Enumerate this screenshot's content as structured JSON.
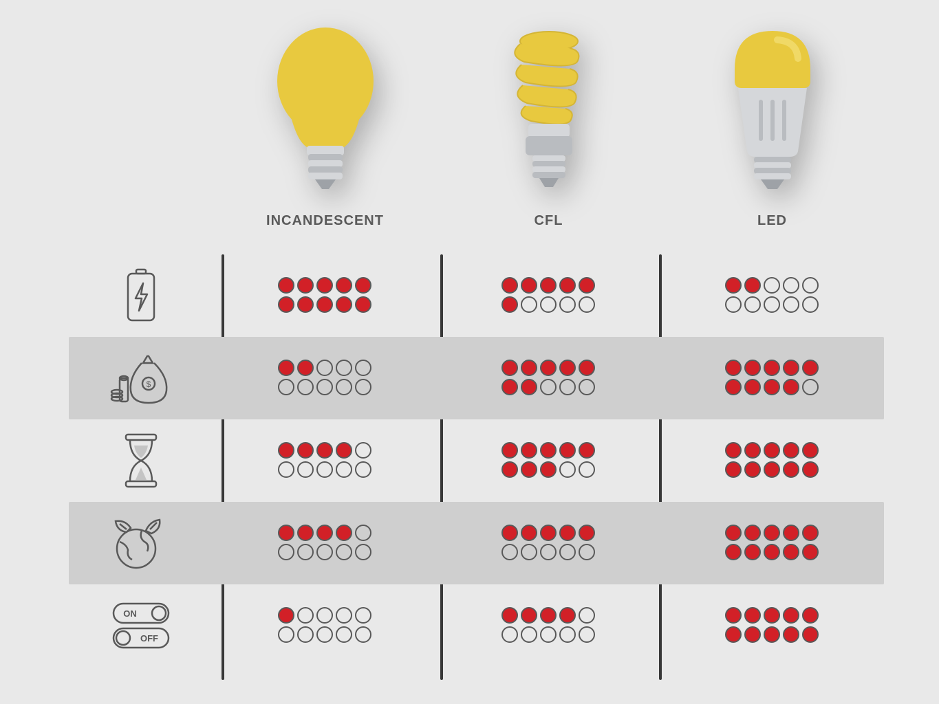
{
  "type": "infographic-comparison-table",
  "background_color": "#e9e9e9",
  "alt_row_color": "#cfcfcf",
  "divider_color": "#383838",
  "dot_filled_color": "#d22027",
  "dot_border_color": "#595959",
  "icon_stroke_color": "#595959",
  "label_color": "#5a5a5a",
  "label_fontsize": 20,
  "bulb_yellow": "#e8c93f",
  "bulb_yellow_light": "#f0d966",
  "bulb_gray": "#b9bcc0",
  "bulb_gray_light": "#d5d7da",
  "bulb_gray_dark": "#9ea2a7",
  "columns": [
    {
      "id": "incandescent",
      "label": "INCANDESCENT"
    },
    {
      "id": "cfl",
      "label": "CFL"
    },
    {
      "id": "led",
      "label": "LED"
    }
  ],
  "rows": [
    {
      "id": "energy",
      "icon": "battery-bolt-icon",
      "alt": false,
      "scores": [
        10,
        6,
        2
      ]
    },
    {
      "id": "cost",
      "icon": "money-bag-icon",
      "alt": true,
      "scores": [
        2,
        7,
        9
      ]
    },
    {
      "id": "lifetime",
      "icon": "hourglass-icon",
      "alt": false,
      "scores": [
        4,
        8,
        10
      ]
    },
    {
      "id": "eco",
      "icon": "earth-leaf-icon",
      "alt": true,
      "scores": [
        4,
        5,
        10
      ]
    },
    {
      "id": "switching",
      "icon": "on-off-toggle-icon",
      "alt": false,
      "scores": [
        1,
        4,
        10
      ]
    }
  ],
  "dots_total": 10,
  "dots_per_row": 5,
  "toggle_on_text": "ON",
  "toggle_off_text": "OFF"
}
